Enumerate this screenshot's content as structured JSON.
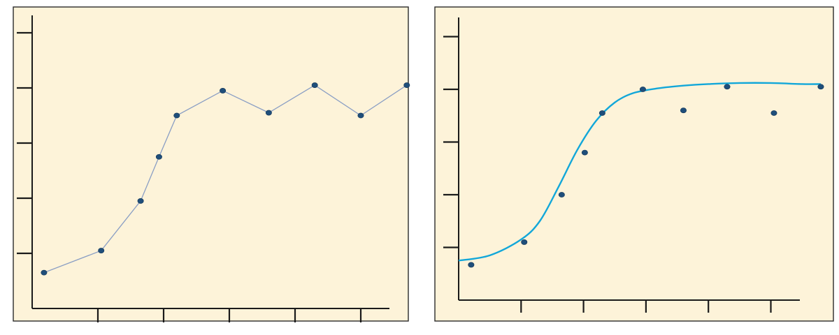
{
  "colors": {
    "panel_background": "#fdf3d9",
    "panel_border": "#2a2a2a",
    "axis": "#1a1a1a",
    "point": "#1f4e7a",
    "connecting_line": "#8a9ec4",
    "fit_curve": "#12a7d9"
  },
  "chart_data": [
    {
      "type": "line",
      "title": "",
      "xlabel": "",
      "ylabel": "",
      "grid": false,
      "legend": "none",
      "xlim": [
        0,
        5.5
      ],
      "ylim": [
        0,
        5
      ],
      "x_ticks": [
        1,
        2,
        3,
        4,
        5
      ],
      "y_ticks": [
        1,
        2,
        3,
        4,
        5
      ],
      "series": [
        {
          "x": [
            0.18,
            1.05,
            1.65,
            1.93,
            2.2,
            2.9,
            3.6,
            4.3,
            5.0,
            5.7
          ],
          "y": [
            0.65,
            1.05,
            1.95,
            2.75,
            3.5,
            3.95,
            3.55,
            4.05,
            3.5,
            4.05
          ]
        }
      ]
    },
    {
      "type": "scatter",
      "title": "",
      "xlabel": "",
      "ylabel": "",
      "grid": false,
      "legend": "none",
      "xlim": [
        0,
        5.5
      ],
      "ylim": [
        0,
        5
      ],
      "x_ticks": [
        1,
        2,
        3,
        4,
        5
      ],
      "y_ticks": [
        1,
        2,
        3,
        4,
        5
      ],
      "series": [
        {
          "x": [
            0.2,
            1.05,
            1.65,
            2.02,
            2.3,
            2.95,
            3.6,
            4.3,
            5.05,
            5.8
          ],
          "y": [
            0.67,
            1.1,
            2.0,
            2.8,
            3.55,
            4.0,
            3.6,
            4.05,
            3.55,
            4.05
          ]
        }
      ],
      "fit_curve": {
        "x": [
          0,
          0.5,
          1.0,
          1.3,
          1.6,
          1.9,
          2.2,
          2.5,
          2.8,
          3.2,
          3.6,
          4.0,
          4.5,
          5.0,
          5.5,
          5.8
        ],
        "y": [
          0.75,
          0.85,
          1.15,
          1.5,
          2.15,
          2.85,
          3.4,
          3.75,
          3.93,
          4.02,
          4.07,
          4.1,
          4.12,
          4.12,
          4.1,
          4.1
        ]
      }
    }
  ]
}
